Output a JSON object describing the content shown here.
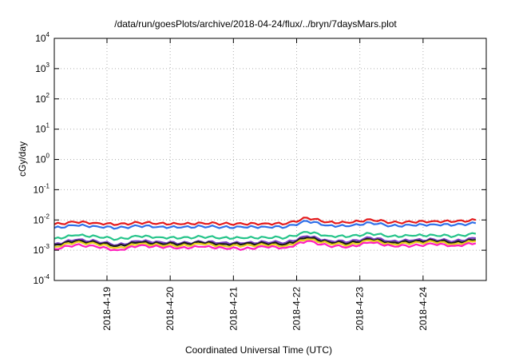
{
  "chart_data": {
    "type": "line",
    "title": "/data/run/goesPlots/archive/2018-04-24/flux/../bryn/7daysMars.plot",
    "xlabel": "Coordinated Universal Time (UTC)",
    "ylabel": "cGy/day",
    "yscale": "log",
    "ylim": [
      0.0001,
      10000
    ],
    "xlim": [
      "2018-04-18 04:00",
      "2018-04-24 23:59"
    ],
    "x_ticks": [
      "2018-4-19",
      "2018-4-20",
      "2018-4-21",
      "2018-4-22",
      "2018-4-23",
      "2018-4-24"
    ],
    "y_ticks": [
      {
        "base": "10",
        "exp": "-4"
      },
      {
        "base": "10",
        "exp": "-3"
      },
      {
        "base": "10",
        "exp": "-2"
      },
      {
        "base": "10",
        "exp": "-1"
      },
      {
        "base": "10",
        "exp": "0"
      },
      {
        "base": "10",
        "exp": "1"
      },
      {
        "base": "10",
        "exp": "2"
      },
      {
        "base": "10",
        "exp": "3"
      },
      {
        "base": "10",
        "exp": "4"
      }
    ],
    "grid": true,
    "x": [
      "2018-04-18 04:00",
      "2018-04-18 12:00",
      "2018-04-18 20:00",
      "2018-04-19 04:00",
      "2018-04-19 12:00",
      "2018-04-19 20:00",
      "2018-04-20 04:00",
      "2018-04-20 12:00",
      "2018-04-20 20:00",
      "2018-04-21 04:00",
      "2018-04-21 12:00",
      "2018-04-21 20:00",
      "2018-04-22 04:00",
      "2018-04-22 12:00",
      "2018-04-22 20:00",
      "2018-04-23 04:00",
      "2018-04-23 12:00",
      "2018-04-23 20:00",
      "2018-04-24 04:00",
      "2018-04-24 12:00",
      "2018-04-24 20:00"
    ],
    "series": [
      {
        "color": "#e41a1c",
        "values": [
          0.0072,
          0.0085,
          0.008,
          0.007,
          0.0082,
          0.0078,
          0.0072,
          0.008,
          0.0075,
          0.0073,
          0.0077,
          0.0074,
          0.0118,
          0.0085,
          0.008,
          0.0105,
          0.0082,
          0.0085,
          0.0092,
          0.0088,
          0.01
        ]
      },
      {
        "color": "#2f6fe8",
        "values": [
          0.0055,
          0.0066,
          0.0062,
          0.0054,
          0.0063,
          0.006,
          0.0056,
          0.0062,
          0.0058,
          0.0057,
          0.006,
          0.0058,
          0.0092,
          0.0066,
          0.0062,
          0.0082,
          0.0064,
          0.0066,
          0.0072,
          0.0068,
          0.0078
        ]
      },
      {
        "color": "#26c48a",
        "values": [
          0.0024,
          0.0031,
          0.0029,
          0.0023,
          0.0029,
          0.0027,
          0.0025,
          0.0028,
          0.0026,
          0.0025,
          0.0027,
          0.0026,
          0.004,
          0.003,
          0.0028,
          0.0036,
          0.0029,
          0.003,
          0.0032,
          0.0029,
          0.0035
        ]
      },
      {
        "color": "#7b3fc4",
        "values": [
          0.0016,
          0.0022,
          0.002,
          0.0015,
          0.002,
          0.0019,
          0.0017,
          0.0019,
          0.0018,
          0.0017,
          0.0019,
          0.0018,
          0.0029,
          0.0021,
          0.0019,
          0.0026,
          0.002,
          0.0021,
          0.0023,
          0.002,
          0.0025
        ]
      },
      {
        "color": "#1a1a1a",
        "values": [
          0.0015,
          0.002,
          0.0018,
          0.0014,
          0.0018,
          0.0017,
          0.0016,
          0.0018,
          0.0016,
          0.0016,
          0.0017,
          0.0016,
          0.0026,
          0.0019,
          0.0017,
          0.0023,
          0.0018,
          0.0019,
          0.0021,
          0.0018,
          0.0022
        ]
      },
      {
        "color": "#e8d21e",
        "values": [
          0.0013,
          0.0018,
          0.0016,
          0.0012,
          0.0016,
          0.0015,
          0.0014,
          0.0016,
          0.0014,
          0.0014,
          0.0015,
          0.0014,
          0.0023,
          0.0017,
          0.0015,
          0.0021,
          0.0016,
          0.0017,
          0.0019,
          0.0016,
          0.002
        ]
      },
      {
        "color": "#ff1fbf",
        "values": [
          0.0011,
          0.0015,
          0.0013,
          0.001,
          0.0014,
          0.0013,
          0.0012,
          0.0013,
          0.0012,
          0.0011,
          0.0013,
          0.0012,
          0.002,
          0.0014,
          0.0013,
          0.0018,
          0.0014,
          0.0014,
          0.0016,
          0.0014,
          0.0017
        ]
      }
    ]
  }
}
